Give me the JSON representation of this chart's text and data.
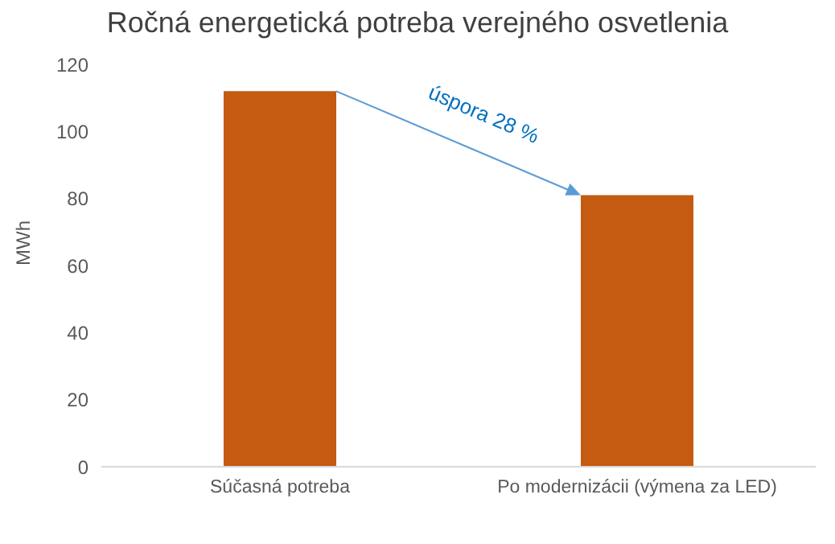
{
  "chart_data": {
    "type": "bar",
    "title": "Ročná energetická potreba verejného osvetlenia",
    "ylabel": "MWh",
    "categories": [
      "Súčasná potreba",
      "Po modernizácii (výmena za LED)"
    ],
    "values": [
      112,
      81
    ],
    "color": "#c55a11",
    "ylim": [
      0,
      120
    ],
    "yticks": [
      0,
      20,
      40,
      60,
      80,
      100,
      120
    ],
    "grid": false,
    "annotations": [
      "úspora 28 %"
    ]
  }
}
